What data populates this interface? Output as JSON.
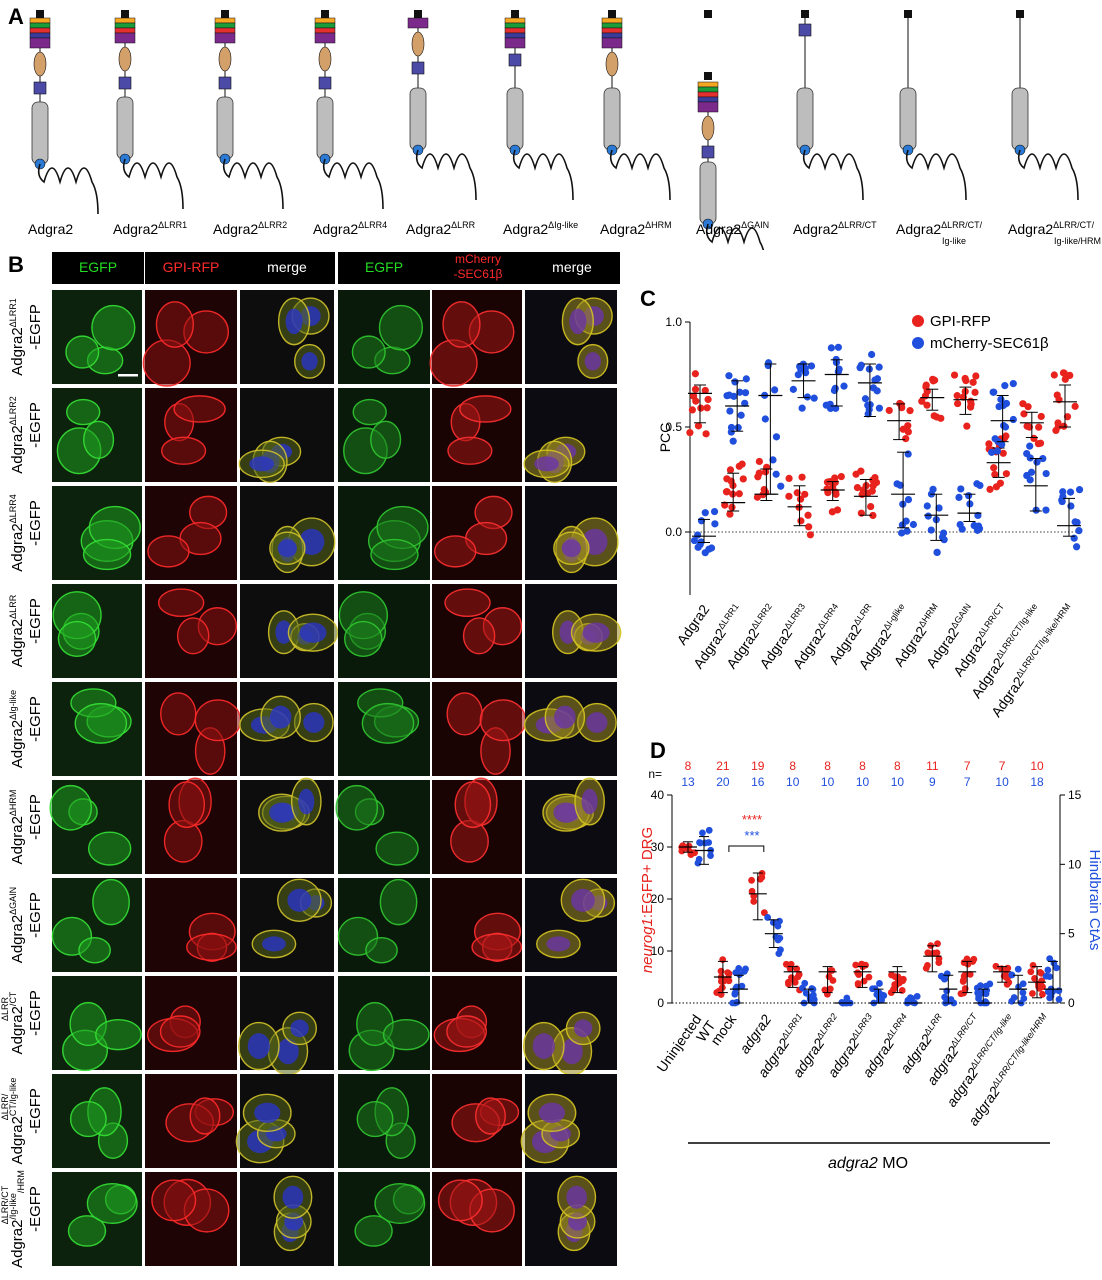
{
  "panels": {
    "a": "A",
    "b": "B",
    "c": "C",
    "d": "D"
  },
  "panel_a": {
    "constructs": [
      {
        "base": "Adgra2",
        "sup": ""
      },
      {
        "base": "Adgra2",
        "sup": "ΔLRR1"
      },
      {
        "base": "Adgra2",
        "sup": "ΔLRR2"
      },
      {
        "base": "Adgra2",
        "sup": "ΔLRR4"
      },
      {
        "base": "Adgra2",
        "sup": "ΔLRR"
      },
      {
        "base": "Adgra2",
        "sup": "ΔIg-like"
      },
      {
        "base": "Adgra2",
        "sup": "ΔHRM"
      },
      {
        "base": "Adgra2",
        "sup": "ΔGAIN"
      },
      {
        "base": "Adgra2",
        "sup": "ΔLRR/CT"
      },
      {
        "base": "Adgra2",
        "sup": "ΔLRR/CT/",
        "sub": "Ig-like"
      },
      {
        "base": "Adgra2",
        "sup": "ΔLRR/CT/",
        "sub": "Ig-like/HRM"
      }
    ]
  },
  "panel_b": {
    "headers": [
      "EGFP",
      "GPI-RFP",
      "merge",
      "EGFP",
      "mCherry",
      "-SEC61β",
      "merge"
    ],
    "header_colors": {
      "egfp": "#22dd22",
      "rfp": "#ff2a2a",
      "merge": "#ffffff"
    },
    "rows": [
      {
        "l1": "Adgra2",
        "sup": "ΔLRR1",
        "l2": "-EGFP"
      },
      {
        "l1": "Adgra2",
        "sup": "ΔLRR2",
        "l2": "-EGFP"
      },
      {
        "l1": "Adgra2",
        "sup": "ΔLRR4",
        "l2": "-EGFP"
      },
      {
        "l1": "Adgra2",
        "sup": "ΔLRR",
        "l2": "-EGFP"
      },
      {
        "l1": "Adgra2",
        "sup": "ΔIg-like",
        "l2": "-EGFP"
      },
      {
        "l1": "Adgra2",
        "sup": "ΔHRM",
        "l2": "-EGFP"
      },
      {
        "l1": "Adgra2",
        "sup": "ΔGAIN",
        "l2": "-EGFP"
      },
      {
        "pre": "ΔLRR",
        "l1": "Adgra2",
        "sup": "/CT",
        "l2": "-EGFP"
      },
      {
        "pre": "ΔLRR/",
        "l1": "Adgra2",
        "sup": "CT/Ig-like",
        "l2": "-EGFP"
      },
      {
        "pre": "ΔLRR/CT",
        "l1": "Adgra2",
        "sup": "/Ig-like",
        "sup2": "/HRM",
        "l2": "-EGFP"
      }
    ]
  },
  "chart_data": [
    {
      "type": "scatter",
      "panel": "C",
      "ylabel": "PCC",
      "ylim": [
        -0.3,
        1.0
      ],
      "yticks": [
        "1.0",
        "0.5",
        "0.0"
      ],
      "legend": {
        "placement": "top-right",
        "entries": [
          "GPI-RFP",
          "mCherry-SEC61β"
        ]
      },
      "colors": {
        "GPI-RFP": "#e8221d",
        "mCherry-SEC61β": "#1f4fdc"
      },
      "categories": [
        {
          "base": "Adgra2",
          "sup": ""
        },
        {
          "base": "Adgra2",
          "sup": "ΔLRR1"
        },
        {
          "base": "Adgra2",
          "sup": "ΔLRR2"
        },
        {
          "base": "Adgra2",
          "sup": "ΔLRR3"
        },
        {
          "base": "Adgra2",
          "sup": "ΔLRR4"
        },
        {
          "base": "Adgra2",
          "sup": "ΔLRR"
        },
        {
          "base": "Adgra2",
          "sup": "ΔI-glike"
        },
        {
          "base": "Adgra2",
          "sup": "ΔHRM"
        },
        {
          "base": "Adgra2",
          "sup": "ΔGAIN"
        },
        {
          "base": "Adgra2",
          "sup": "ΔLRR/CT"
        },
        {
          "base": "Adgra2",
          "sup": "ΔLRR/CT/Ig-like"
        },
        {
          "base": "Adgra2",
          "sup": "ΔLRR/CT/Ig-like/HRM"
        }
      ],
      "series": [
        {
          "name": "GPI-RFP",
          "medians": [
            0.66,
            0.14,
            0.18,
            0.12,
            0.2,
            0.17,
            0.53,
            0.64,
            0.63,
            0.33,
            0.52,
            0.62
          ],
          "lower": [
            0.52,
            0.1,
            0.15,
            0.03,
            0.15,
            0.08,
            0.44,
            0.58,
            0.56,
            0.26,
            0.45,
            0.5
          ],
          "upper": [
            0.7,
            0.28,
            0.3,
            0.22,
            0.24,
            0.25,
            0.61,
            0.68,
            0.69,
            0.4,
            0.57,
            0.7
          ]
        },
        {
          "name": "mCherry-SEC61β",
          "medians": [
            -0.02,
            0.6,
            0.65,
            0.72,
            0.75,
            0.71,
            0.18,
            0.08,
            0.09,
            0.53,
            0.22,
            0.03
          ],
          "lower": [
            -0.05,
            0.48,
            0.18,
            0.64,
            0.6,
            0.55,
            0.02,
            -0.04,
            0.05,
            0.43,
            0.1,
            -0.02
          ],
          "upper": [
            0.06,
            0.72,
            0.8,
            0.8,
            0.82,
            0.8,
            0.38,
            0.18,
            0.18,
            0.65,
            0.35,
            0.16
          ]
        }
      ]
    },
    {
      "type": "scatter",
      "panel": "D",
      "ylabel_left_italic": "neurog1",
      "ylabel_left_rest": ":EGFP+ DRG",
      "ylabel_right": "Hindbrain CtAs",
      "ylim_left": [
        0,
        40
      ],
      "ylim_right": [
        0,
        15
      ],
      "yticks_left": [
        "40",
        "30",
        "20",
        "10",
        "0"
      ],
      "yticks_right": [
        "15",
        "10",
        "5",
        "0"
      ],
      "n_label": "n=",
      "n_red": [
        "8",
        "21",
        "19",
        "8",
        "8",
        "8",
        "8",
        "11",
        "7",
        "7",
        "10"
      ],
      "n_blue": [
        "13",
        "20",
        "16",
        "10",
        "10",
        "10",
        "10",
        "9",
        "7",
        "10",
        "18"
      ],
      "significance_red": "****",
      "significance_blue": "***",
      "categories": [
        {
          "base": "Uninjected",
          "base2": "WT",
          "sup": "",
          "italic": false
        },
        {
          "base": "mock",
          "sup": "",
          "italic": false
        },
        {
          "base": "adgra2",
          "sup": "",
          "italic": true
        },
        {
          "base": "adgra2",
          "sup": "ΔLRR1",
          "italic": true
        },
        {
          "base": "adgra2",
          "sup": "ΔLRR2",
          "italic": true
        },
        {
          "base": "adgra2",
          "sup": "ΔLRR3",
          "italic": true
        },
        {
          "base": "adgra2",
          "sup": "ΔLRR4",
          "italic": true
        },
        {
          "base": "adgra2",
          "sup": "ΔLRR",
          "italic": true
        },
        {
          "base": "adgra2",
          "sup": "ΔLRR/CT",
          "italic": true
        },
        {
          "base": "adgra2",
          "sup": "ΔLRR/CT/Ig-like",
          "italic": true
        },
        {
          "base": "adgra2",
          "sup": "ΔLRR/CT/Ig-like/HRM",
          "italic": true
        }
      ],
      "group_label_italic": "adgra2",
      "group_label_rest": " MO",
      "series": [
        {
          "name": "neurog1:EGFP+ DRG",
          "axis": "left",
          "medians": [
            30,
            5,
            21,
            6,
            6,
            6,
            6,
            9,
            6,
            6,
            4
          ],
          "lower": [
            29,
            2,
            16,
            3,
            2,
            3,
            2,
            6,
            2,
            4,
            1
          ],
          "upper": [
            31,
            8,
            25,
            7,
            7,
            7,
            7,
            11,
            8,
            7,
            7
          ]
        },
        {
          "name": "Hindbrain CtAs",
          "axis": "right",
          "medians": [
            11,
            1,
            5,
            0,
            0,
            0,
            0,
            1,
            0,
            1,
            1
          ],
          "lower": [
            10,
            0,
            4,
            0,
            0,
            0,
            0,
            0,
            0,
            0,
            0
          ],
          "upper": [
            12,
            2,
            6,
            1,
            0,
            1,
            0,
            2,
            1,
            2,
            3
          ]
        }
      ]
    }
  ]
}
